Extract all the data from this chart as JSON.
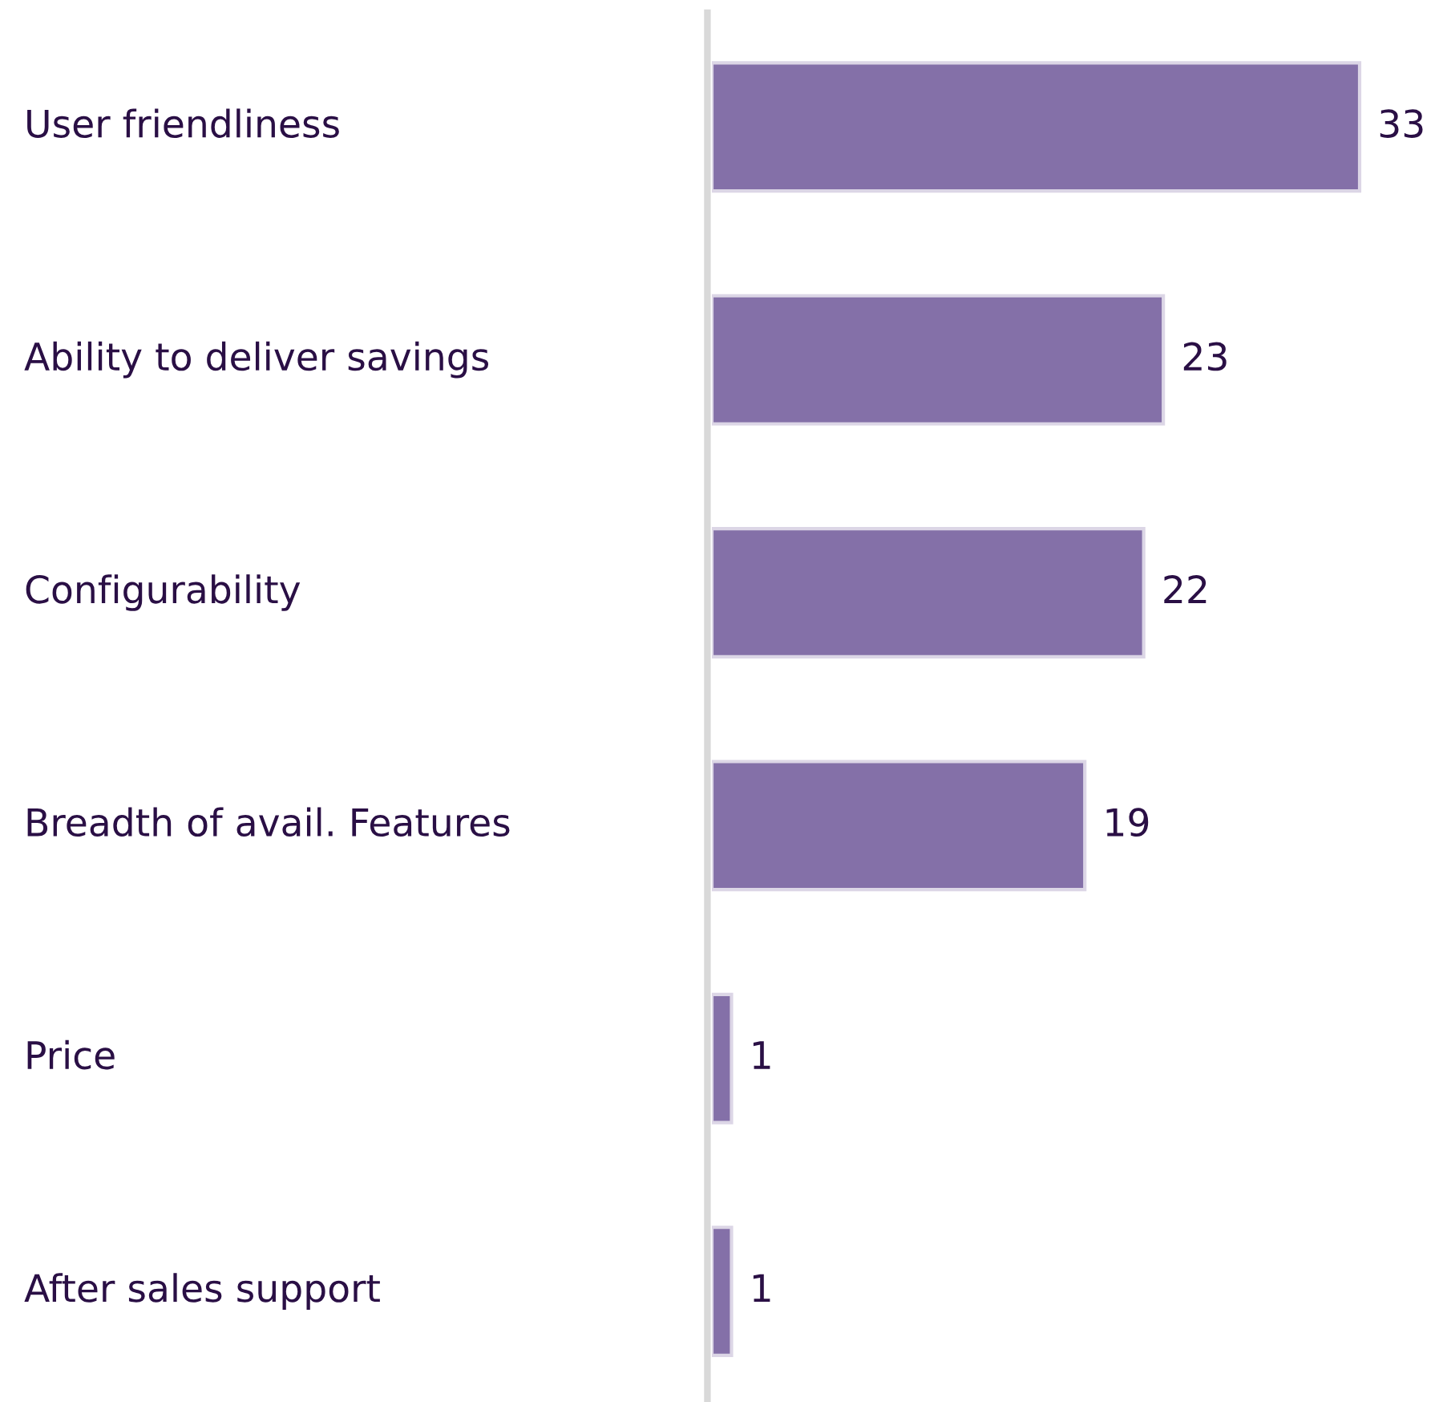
{
  "chart_data": {
    "type": "bar",
    "orientation": "horizontal",
    "categories": [
      "User friendliness",
      "Ability to deliver savings",
      "Configurability",
      "Breadth of avail. Features",
      "Price",
      "After sales support"
    ],
    "values": [
      33,
      23,
      22,
      19,
      1,
      1
    ],
    "color": "#8470a8",
    "data_labels": true
  }
}
